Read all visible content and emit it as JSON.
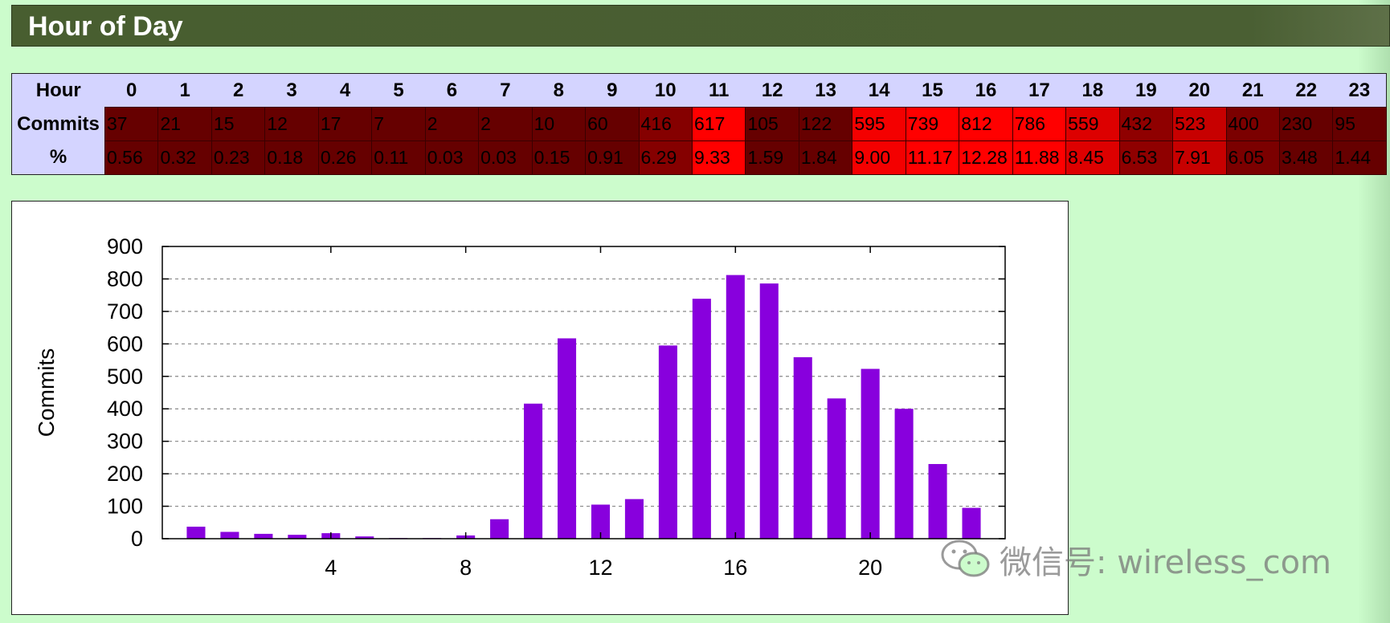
{
  "section_title": "Hour of Day",
  "table": {
    "row_labels": {
      "hour": "Hour",
      "commits": "Commits",
      "percent": "%"
    },
    "hours": [
      "0",
      "1",
      "2",
      "3",
      "4",
      "5",
      "6",
      "7",
      "8",
      "9",
      "10",
      "11",
      "12",
      "13",
      "14",
      "15",
      "16",
      "17",
      "18",
      "19",
      "20",
      "21",
      "22",
      "23"
    ],
    "commits": [
      "37",
      "21",
      "15",
      "12",
      "17",
      "7",
      "2",
      "2",
      "10",
      "60",
      "416",
      "617",
      "105",
      "122",
      "595",
      "739",
      "812",
      "786",
      "559",
      "432",
      "523",
      "400",
      "230",
      "95"
    ],
    "percent": [
      "0.56",
      "0.32",
      "0.23",
      "0.18",
      "0.26",
      "0.11",
      "0.03",
      "0.03",
      "0.15",
      "0.91",
      "6.29",
      "9.33",
      "1.59",
      "1.84",
      "9.00",
      "11.17",
      "12.28",
      "11.88",
      "8.45",
      "6.53",
      "7.91",
      "6.05",
      "3.48",
      "1.44"
    ]
  },
  "colors": {
    "header_bg": "#485e30",
    "hour_row_bg": "#d4d4ff",
    "cell_low": "#660000",
    "cell_high": "#ff0000",
    "bar": "#8800dd"
  },
  "chart_data": {
    "type": "bar",
    "x": [
      0,
      1,
      2,
      3,
      4,
      5,
      6,
      7,
      8,
      9,
      10,
      11,
      12,
      13,
      14,
      15,
      16,
      17,
      18,
      19,
      20,
      21,
      22,
      23
    ],
    "values": [
      37,
      21,
      15,
      12,
      17,
      7,
      2,
      2,
      10,
      60,
      416,
      617,
      105,
      122,
      595,
      739,
      812,
      786,
      559,
      432,
      523,
      400,
      230,
      95
    ],
    "ylabel": "Commits",
    "xlabel": "",
    "title": "",
    "ylim": [
      0,
      900
    ],
    "xlim": [
      -1,
      24
    ],
    "yticks": [
      "0",
      "100",
      "200",
      "300",
      "400",
      "500",
      "600",
      "700",
      "800",
      "900"
    ],
    "xticks": [
      "4",
      "8",
      "12",
      "16",
      "20"
    ],
    "grid": true
  },
  "watermark": {
    "text": "微信号: wireless_com",
    "icon": "wechat-icon"
  }
}
